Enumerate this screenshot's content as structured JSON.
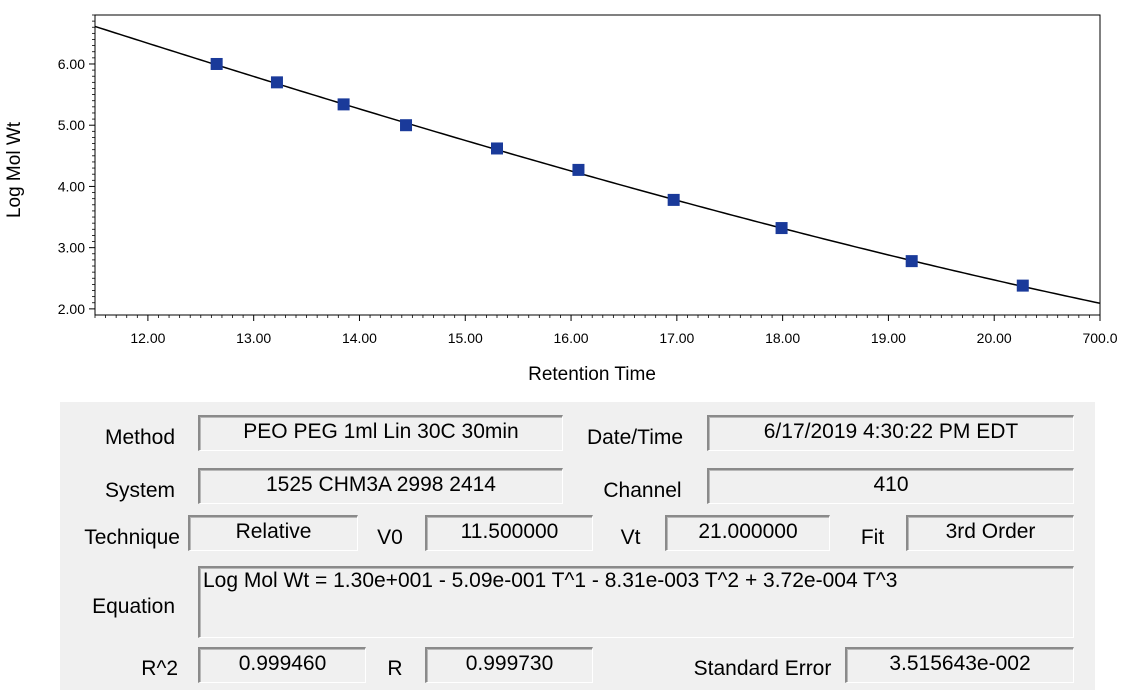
{
  "chart_data": {
    "type": "scatter",
    "xlabel": "Retention Time",
    "ylabel": "Log Mol Wt",
    "xlim": [
      11.5,
      21.0
    ],
    "ylim": [
      1.9,
      6.8
    ],
    "x_ticks": [
      "12.00",
      "13.00",
      "14.00",
      "15.00",
      "16.00",
      "17.00",
      "18.00",
      "19.00",
      "20.00",
      "700.0"
    ],
    "y_ticks": [
      "2.00",
      "3.00",
      "4.00",
      "5.00",
      "6.00"
    ],
    "points": [
      {
        "x": 12.65,
        "y": 6.0
      },
      {
        "x": 13.22,
        "y": 5.7
      },
      {
        "x": 13.85,
        "y": 5.34
      },
      {
        "x": 14.44,
        "y": 5.0
      },
      {
        "x": 15.3,
        "y": 4.62
      },
      {
        "x": 16.07,
        "y": 4.27
      },
      {
        "x": 16.97,
        "y": 3.78
      },
      {
        "x": 17.99,
        "y": 3.32
      },
      {
        "x": 19.22,
        "y": 2.78
      },
      {
        "x": 20.27,
        "y": 2.38
      }
    ],
    "fit": {
      "order": 3,
      "coefficients": [
        13.0,
        -0.509,
        -0.00831,
        0.000372
      ]
    },
    "marker_color": "#1a3a9a",
    "line_color": "#000000",
    "grid": false
  },
  "panel": {
    "method_label": "Method",
    "method_value": "PEO PEG 1ml Lin 30C 30min",
    "datetime_label": "Date/Time",
    "datetime_value": "6/17/2019 4:30:22 PM EDT",
    "system_label": "System",
    "system_value": "1525 CHM3A 2998 2414",
    "channel_label": "Channel",
    "channel_value": "410",
    "technique_label": "Technique",
    "technique_value": "Relative",
    "v0_label": "V0",
    "v0_value": "11.500000",
    "vt_label": "Vt",
    "vt_value": "21.000000",
    "fit_label": "Fit",
    "fit_value": "3rd Order",
    "equation_label": "Equation",
    "equation_value": "Log Mol Wt = 1.30e+001 - 5.09e-001 T^1 - 8.31e-003 T^2 + 3.72e-004 T^3",
    "r2_label": "R^2",
    "r2_value": "0.999460",
    "r_label": "R",
    "r_value": "0.999730",
    "stderr_label": "Standard Error",
    "stderr_value": "3.515643e-002"
  }
}
